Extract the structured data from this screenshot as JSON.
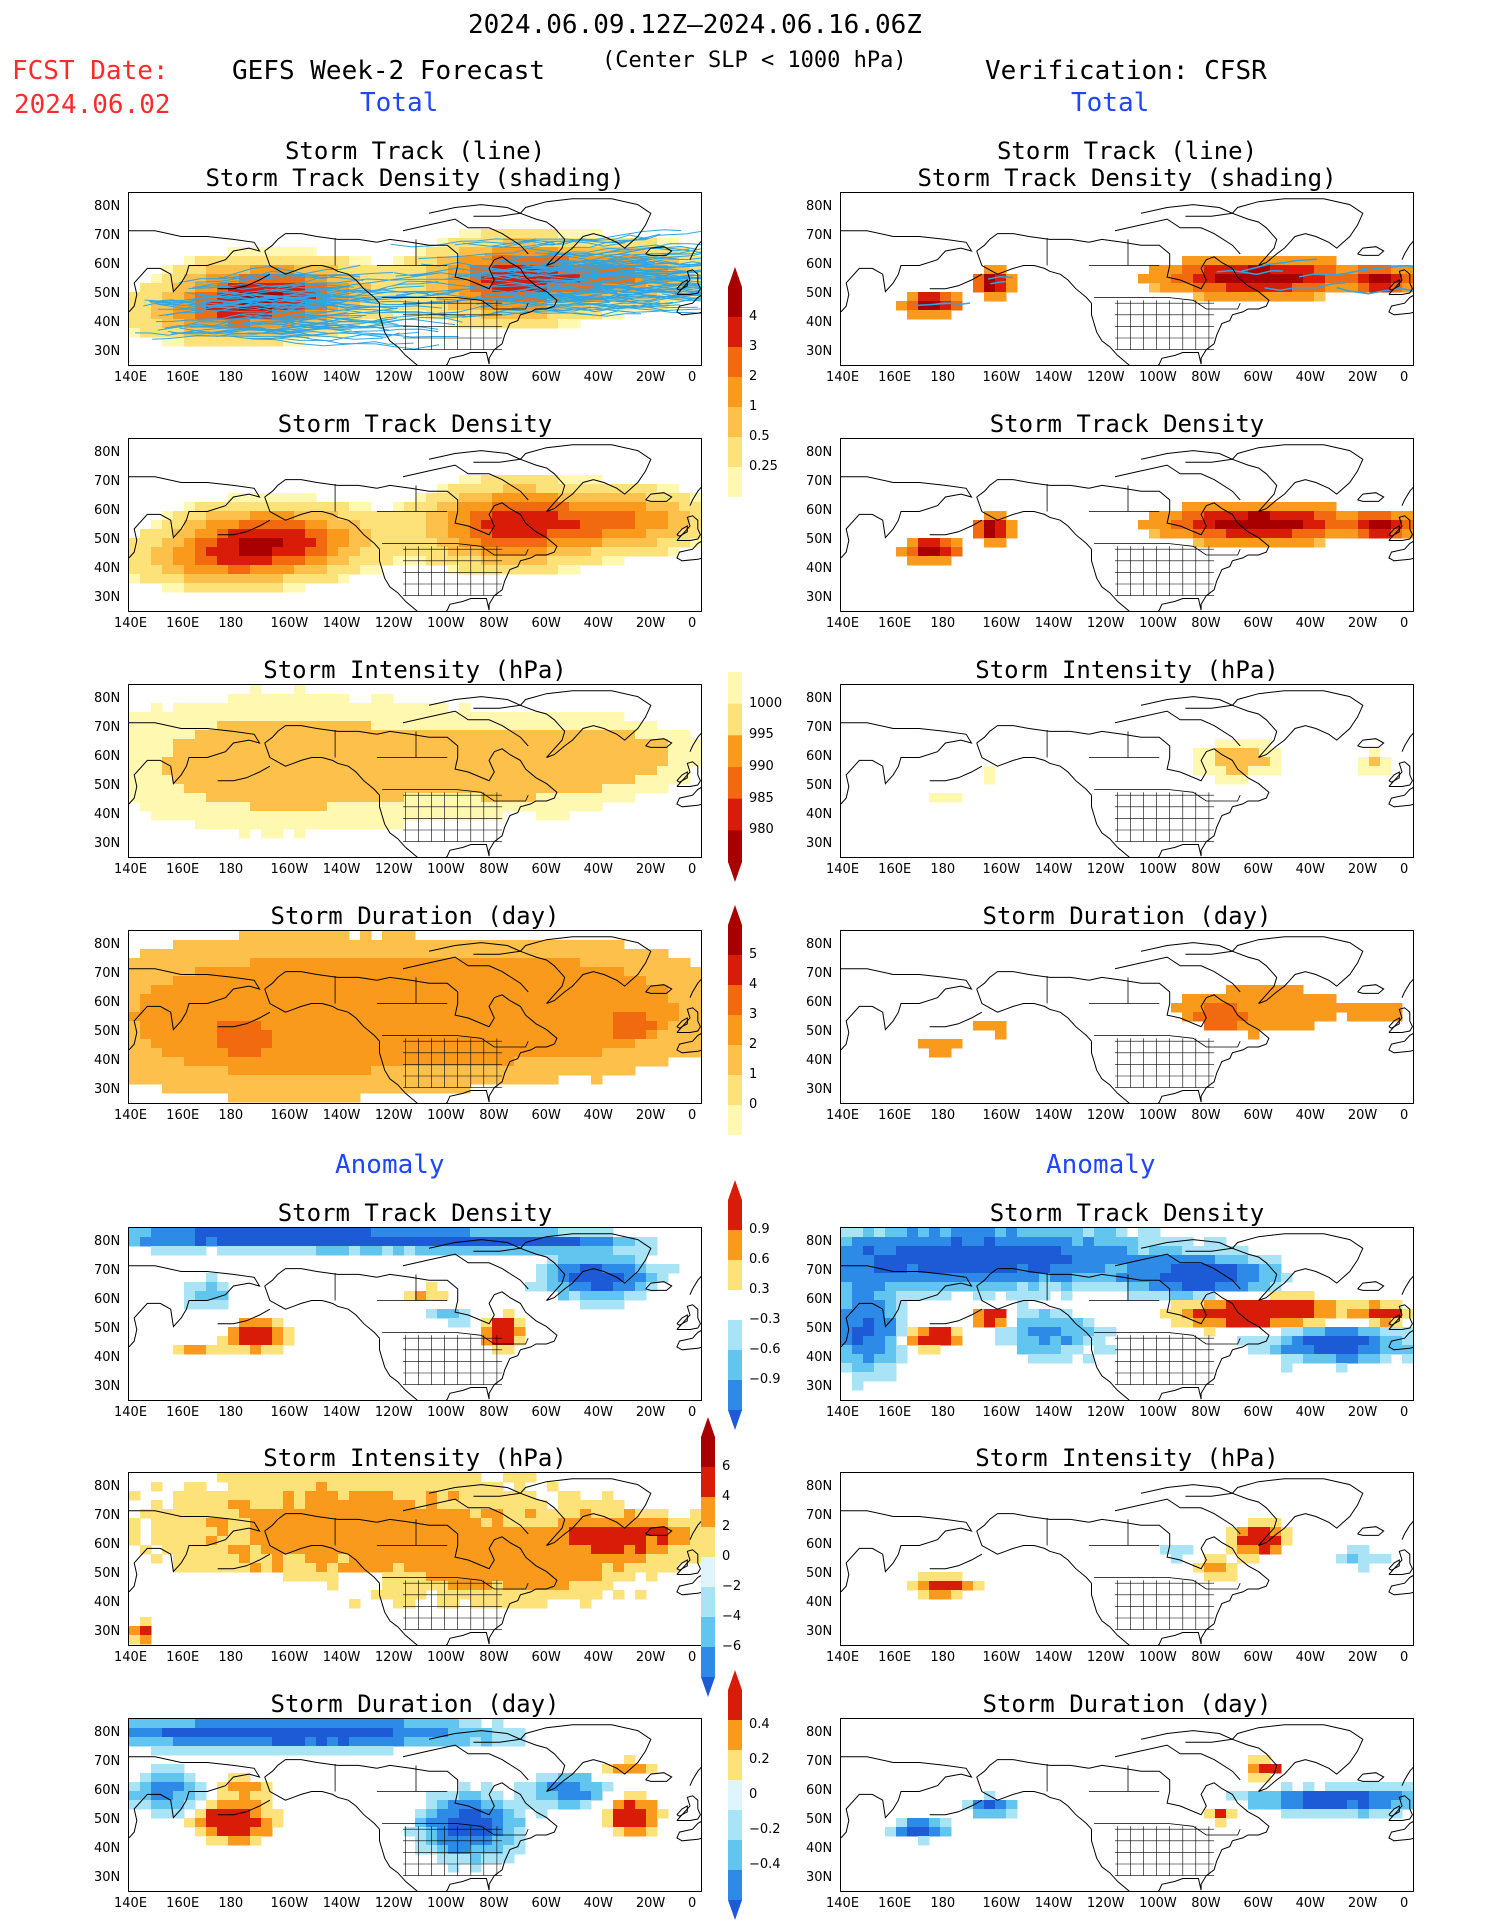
{
  "header": {
    "period": "2024.06.09.12Z–2024.06.16.06Z",
    "fcst_label": "FCST Date:",
    "fcst_date": "2024.06.02",
    "forecast_title": "GEFS Week-2 Forecast",
    "criterion": "(Center SLP < 1000 hPa)",
    "verification": "Verification: CFSR",
    "total_left": "Total",
    "total_right": "Total",
    "anomaly_left": "Anomaly",
    "anomaly_right": "Anomaly"
  },
  "titles": {
    "track_line": "Storm Track (line)",
    "track_density_shading": "Storm Track Density (shading)",
    "density": "Storm Track Density",
    "intensity": "Storm Intensity (hPa)",
    "duration": "Storm Duration (day)"
  },
  "axes": {
    "lat_labels": [
      "80N",
      "70N",
      "60N",
      "50N",
      "40N",
      "30N"
    ],
    "lon_labels": [
      "140E",
      "160E",
      "180",
      "160W",
      "140W",
      "120W",
      "100W",
      "80W",
      "60W",
      "40W",
      "20W",
      "0"
    ]
  },
  "colorbars": {
    "density_total": [
      "4",
      "3",
      "2",
      "1",
      "0.5",
      "0.25"
    ],
    "intensity_total": [
      "1000",
      "995",
      "990",
      "985",
      "980"
    ],
    "duration_total": [
      "5",
      "4",
      "3",
      "2",
      "1",
      "0"
    ],
    "density_anom": [
      "0.9",
      "0.6",
      "0.3",
      "−0.3",
      "−0.6",
      "−0.9"
    ],
    "intensity_anom": [
      "6",
      "4",
      "2",
      "0",
      "−2",
      "−4",
      "−6"
    ],
    "duration_anom": [
      "0.4",
      "0.2",
      "0",
      "−0.2",
      "−0.4"
    ]
  },
  "colors": {
    "warm": [
      "#fff8b0",
      "#fde27a",
      "#fdc04a",
      "#f99a1c",
      "#f26a10",
      "#d81c08",
      "#a80000"
    ],
    "cool": [
      "#dff4fb",
      "#a8e4f6",
      "#62c5f0",
      "#2d8ae6",
      "#1c5ad6"
    ],
    "track_line": "#2ca6e6",
    "header_red": "#ff2a2a",
    "header_blue": "#1e46ff"
  }
}
